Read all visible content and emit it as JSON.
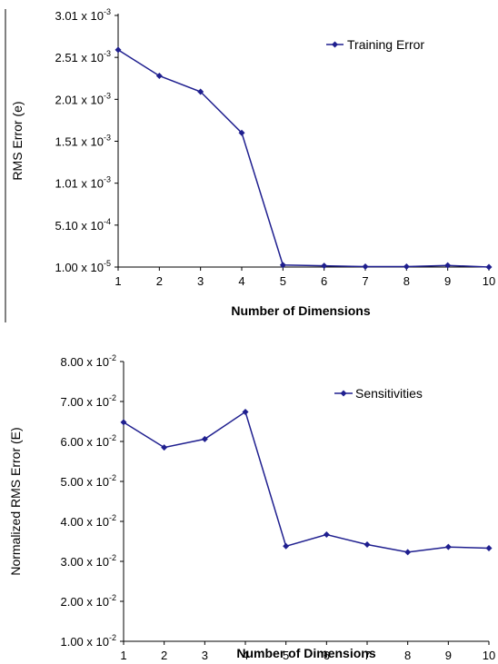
{
  "chart_data": [
    {
      "type": "line",
      "xlabel": "Number of Dimensions",
      "ylabel": "RMS Error (e)",
      "x": [
        1,
        2,
        3,
        4,
        5,
        6,
        7,
        8,
        9,
        10
      ],
      "xticks": [
        "1",
        "2",
        "3",
        "4",
        "5",
        "6",
        "7",
        "8",
        "9",
        "10"
      ],
      "ylim": [
        1e-05,
        0.00301
      ],
      "yticks": [
        {
          "value": 0.00301,
          "mantissa": "3.01 x 10",
          "exp": "-3"
        },
        {
          "value": 0.00251,
          "mantissa": "2.51 x 10",
          "exp": "-3"
        },
        {
          "value": 0.00201,
          "mantissa": "2.01 x 10",
          "exp": "-3"
        },
        {
          "value": 0.00151,
          "mantissa": "1.51 x 10",
          "exp": "-3"
        },
        {
          "value": 0.00101,
          "mantissa": "1.01 x 10",
          "exp": "-3"
        },
        {
          "value": 0.00051,
          "mantissa": "5.10 x 10",
          "exp": "-4"
        },
        {
          "value": 1e-05,
          "mantissa": "1.00 x 10",
          "exp": "-5"
        }
      ],
      "series": [
        {
          "name": "Training Error",
          "values": [
            0.0026,
            0.00229,
            0.0021,
            0.00161,
            3.5e-05,
            2.5e-05,
            1.5e-05,
            1.5e-05,
            3e-05,
            1e-05
          ]
        }
      ],
      "legend": "top-right",
      "color": "#1f1f8f",
      "grid": false
    },
    {
      "type": "line",
      "xlabel": "Number of Dimensions",
      "ylabel": "Normalized RMS Error (E)",
      "x": [
        1,
        2,
        3,
        4,
        5,
        6,
        7,
        8,
        9,
        10
      ],
      "xticks": [
        "1",
        "2",
        "3",
        "4",
        "5",
        "6",
        "7",
        "8",
        "9",
        "10"
      ],
      "ylim": [
        0.01,
        0.08
      ],
      "yticks": [
        {
          "value": 0.08,
          "mantissa": "8.00 x 10",
          "exp": "-2"
        },
        {
          "value": 0.07,
          "mantissa": "7.00 x 10",
          "exp": "-2"
        },
        {
          "value": 0.06,
          "mantissa": "6.00 x 10",
          "exp": "-2"
        },
        {
          "value": 0.05,
          "mantissa": "5.00 x 10",
          "exp": "-2"
        },
        {
          "value": 0.04,
          "mantissa": "4.00 x 10",
          "exp": "-2"
        },
        {
          "value": 0.03,
          "mantissa": "3.00 x 10",
          "exp": "-2"
        },
        {
          "value": 0.02,
          "mantissa": "2.00 x 10",
          "exp": "-2"
        },
        {
          "value": 0.01,
          "mantissa": "1.00 x 10",
          "exp": "-2"
        }
      ],
      "series": [
        {
          "name": "Sensitivities",
          "values": [
            0.0648,
            0.0585,
            0.0606,
            0.0674,
            0.0338,
            0.0367,
            0.0342,
            0.0323,
            0.0336,
            0.0333
          ]
        }
      ],
      "legend": "top-right",
      "color": "#1f1f8f",
      "grid": false
    }
  ]
}
